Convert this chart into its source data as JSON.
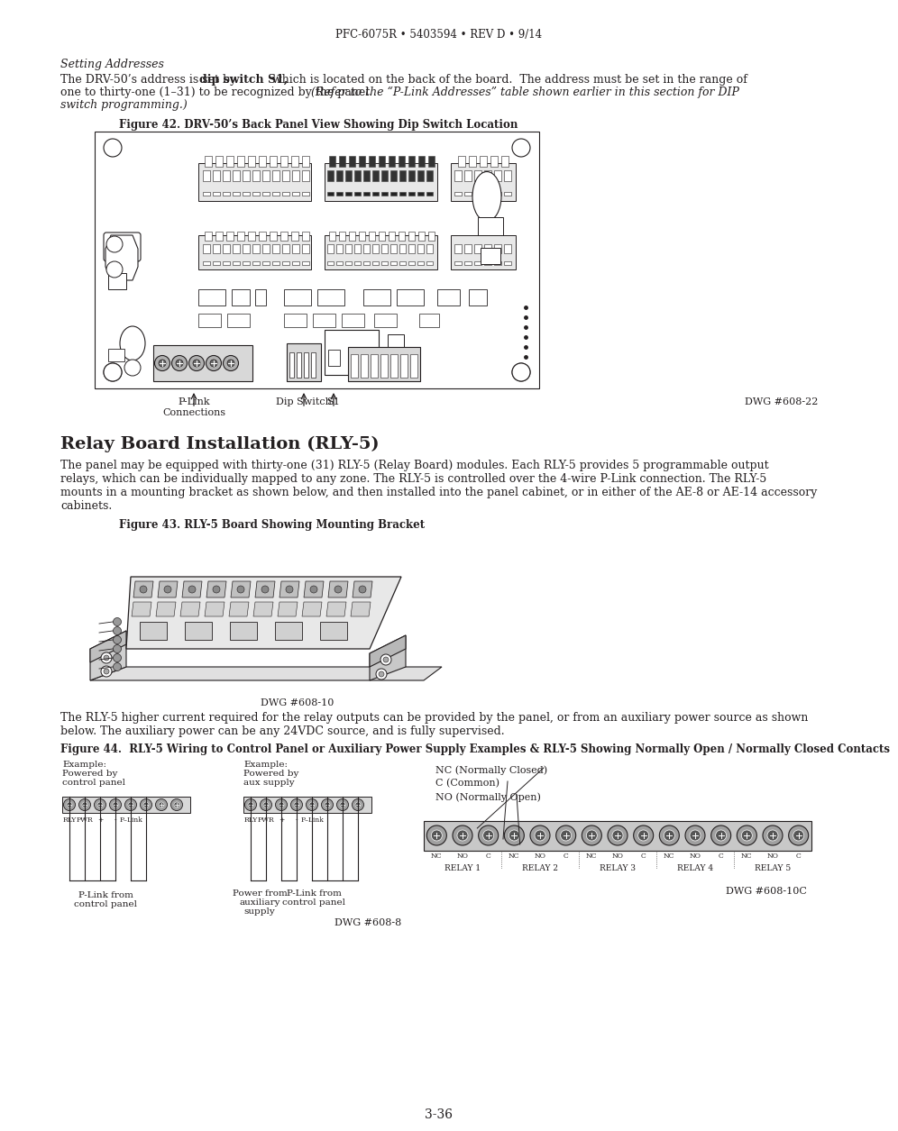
{
  "page_header": "PFC-6075R • 5403594 • REV D • 9/14",
  "page_footer": "3-36",
  "section_italic": "Setting Addresses",
  "para1_line1a": "The DRV-50’s address is set by ",
  "para1_line1b": "dip switch S1,",
  "para1_line1c": " which is located on the back of the board.  The address must be set in the range of",
  "para1_line2": "one to thirty-one (1–31) to be recognized by the panel. ",
  "para1_line2i": "(Refer to the “P-Link Addresses” table shown earlier in this section for DIP",
  "para1_line3i": "switch programming.)",
  "fig42_caption": "Figure 42. DRV-50’s Back Panel View Showing Dip Switch Location",
  "fig42_label1": "P-Link\nConnections",
  "fig42_label2": "Dip Switch",
  "fig42_label3": "S1",
  "fig42_dwg": "DWG #608-22",
  "section_h1": "Relay Board Installation (RLY-5)",
  "para2_line1": "The panel may be equipped with thirty-one (31) RLY-5 (Relay Board) modules. Each RLY-5 provides 5 programmable output",
  "para2_line2": "relays, which can be individually mapped to any zone. The RLY-5 is controlled over the 4-wire P-Link connection. The RLY-5",
  "para2_line3": "mounts in a mounting bracket as shown below, and then installed into the panel cabinet, or in either of the AE-8 or AE-14 accessory",
  "para2_line4": "cabinets.",
  "fig43_caption": "Figure 43. RLY-5 Board Showing Mounting Bracket",
  "fig43_dwg": "DWG #608-10",
  "para3_line1": "The RLY-5 higher current required for the relay outputs can be provided by the panel, or from an auxiliary power source as shown",
  "para3_line2": "below. The auxiliary power can be any 24VDC source, and is fully supervised.",
  "fig44_caption": "Figure 44.  RLY-5 Wiring to Control Panel or Auxiliary Power Supply Examples & RLY-5 Showing Normally Open / Normally Closed Contacts",
  "fig44_ex1_line1": "Example:",
  "fig44_ex1_line2": "Powered by",
  "fig44_ex1_line3": "control panel",
  "fig44_ex2_line1": "Example:",
  "fig44_ex2_line2": "Powered by",
  "fig44_ex2_line3": "aux supply",
  "fig44_label_nc": "NC (Normally Closed)",
  "fig44_label_c": "C (Common)",
  "fig44_label_no": "NO (Normally Open)",
  "fig44_plink_bot1": "P-Link from",
  "fig44_plink_bot2": "control panel",
  "fig44_power_bot1": "Power from",
  "fig44_power_bot2": "auxiliary",
  "fig44_power_bot3": "supply",
  "fig44_plink2_bot1": "P-Link from",
  "fig44_plink2_bot2": "control panel",
  "fig44_dwg1": "DWG #608-8",
  "fig44_dwg2": "DWG #608-10C",
  "bg_color": "#ffffff",
  "text_color": "#231f20"
}
